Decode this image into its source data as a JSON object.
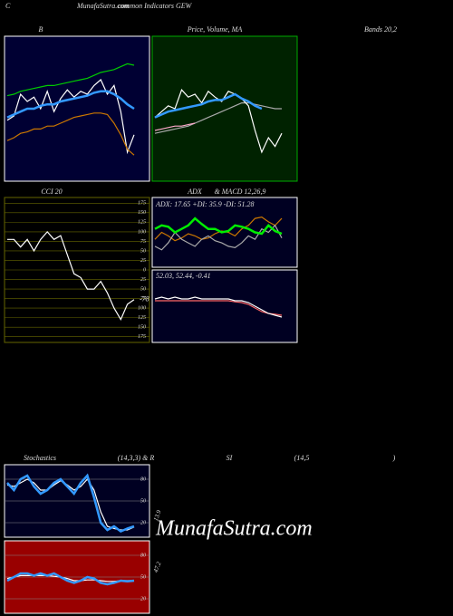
{
  "header": {
    "corner": "C",
    "site": "MunafaSutra.com",
    "subtitle": "common Indicators GEW"
  },
  "watermark": "MunafaSutra.com",
  "chart_data": [
    {
      "type": "line",
      "title": [
        "B",
        "Bands 20,2"
      ],
      "background": "#000033",
      "border": "#ffffff",
      "ylim": [
        0,
        100
      ],
      "series": [
        {
          "color": "#00cc00",
          "values": [
            59,
            60,
            62,
            63,
            64,
            65,
            66,
            66,
            67,
            68,
            69,
            70,
            71,
            73,
            75,
            76,
            77,
            79,
            81,
            80
          ]
        },
        {
          "color": "#ffffff",
          "values": [
            42,
            45,
            60,
            55,
            58,
            50,
            62,
            48,
            57,
            63,
            58,
            62,
            60,
            66,
            70,
            60,
            66,
            48,
            20,
            32
          ]
        },
        {
          "color": "#3399ff",
          "values": [
            44,
            46,
            48,
            50,
            50,
            52,
            53,
            53,
            55,
            56,
            57,
            58,
            59,
            61,
            62,
            62,
            60,
            57,
            53,
            50
          ]
        },
        {
          "color": "#cc7700",
          "values": [
            28,
            30,
            33,
            34,
            36,
            36,
            38,
            38,
            40,
            42,
            44,
            45,
            46,
            47,
            47,
            46,
            40,
            32,
            22,
            18
          ]
        }
      ]
    },
    {
      "type": "line",
      "title": [
        "Price, Volume, MA"
      ],
      "background": "#002200",
      "border": "#00aa00",
      "ylim": [
        0,
        100
      ],
      "series": [
        {
          "color": "#aaaaaa",
          "values": [
            33,
            34,
            35,
            36,
            37,
            38,
            40,
            42,
            44,
            46,
            48,
            50,
            52,
            54,
            54,
            53,
            52,
            51,
            50,
            50
          ]
        },
        {
          "color": "#ffaacc",
          "values": [
            35,
            36,
            37,
            38,
            38,
            39,
            40,
            null,
            null,
            null,
            null,
            null,
            null,
            null,
            null,
            null,
            null,
            null,
            null,
            null
          ]
        },
        {
          "color": "#ffffff",
          "values": [
            44,
            48,
            52,
            50,
            63,
            58,
            60,
            54,
            62,
            58,
            55,
            62,
            60,
            57,
            52,
            35,
            20,
            30,
            24,
            33
          ]
        },
        {
          "color": "#3399ff",
          "values": [
            44,
            46,
            48,
            49,
            50,
            51,
            52,
            53,
            55,
            56,
            56,
            58,
            60,
            57,
            55,
            52,
            50,
            null,
            null,
            null
          ]
        }
      ]
    },
    {
      "type": "line",
      "title": [
        "CCI 20"
      ],
      "background": "#000000",
      "border": "#666600",
      "grid": true,
      "annotation": "-78",
      "ylim": [
        -190,
        190
      ],
      "yticks": [
        175,
        150,
        125,
        100,
        75,
        50,
        25,
        0,
        {
          "value": -25,
          "label": "25"
        },
        {
          "value": -50,
          "label": "50"
        },
        {
          "value": -75,
          "label": "75"
        },
        {
          "value": -100,
          "label": "100"
        },
        {
          "value": -125,
          "label": "125"
        },
        {
          "value": -150,
          "label": "150"
        },
        {
          "value": -175,
          "label": "175"
        }
      ],
      "series": [
        {
          "color": "#ffffff",
          "values": [
            80,
            80,
            60,
            80,
            50,
            80,
            100,
            80,
            90,
            40,
            -10,
            -20,
            -50,
            -50,
            -30,
            -60,
            -100,
            -130,
            -90,
            -78
          ]
        }
      ]
    },
    {
      "type": "line",
      "title": [
        "ADX",
        "& MACD 12,26,9"
      ],
      "background": "#000022",
      "border": "#ffffff",
      "annotation": "ADX: 17.65 +DI: 35.9 -DI: 51.28",
      "ylim": [
        0,
        100
      ],
      "series": [
        {
          "color": "#cc7700",
          "values": [
            40,
            50,
            45,
            38,
            42,
            48,
            45,
            40,
            42,
            48,
            52,
            50,
            45,
            55,
            60,
            70,
            72,
            65,
            60,
            70
          ]
        },
        {
          "color": "#aaaaaa",
          "values": [
            30,
            25,
            35,
            50,
            40,
            35,
            30,
            40,
            45,
            38,
            35,
            30,
            28,
            35,
            45,
            40,
            55,
            50,
            60,
            42
          ]
        },
        {
          "color": "#00ee00",
          "values": [
            55,
            60,
            58,
            50,
            55,
            60,
            70,
            62,
            55,
            55,
            50,
            52,
            60,
            58,
            55,
            50,
            48,
            60,
            52,
            48
          ]
        }
      ]
    },
    {
      "type": "line",
      "background": "#000022",
      "border": "#ffffff",
      "annotation": "52.03, 52.44, -0.41",
      "ylim": [
        -1,
        1
      ],
      "series": [
        {
          "color": "#ff6666",
          "values": [
            0.15,
            0.15,
            0.15,
            0.15,
            0.15,
            0.15,
            0.15,
            0.15,
            0.15,
            0.15,
            0.15,
            0.15,
            0.12,
            0.1,
            0.05,
            -0.05,
            -0.15,
            -0.2,
            -0.22,
            -0.25
          ]
        },
        {
          "color": "#ffffff",
          "values": [
            0.2,
            0.25,
            0.2,
            0.25,
            0.2,
            0.2,
            0.25,
            0.2,
            0.2,
            0.2,
            0.2,
            0.2,
            0.15,
            0.15,
            0.1,
            0,
            -0.1,
            -0.2,
            -0.25,
            -0.3
          ]
        }
      ]
    },
    {
      "type": "line",
      "title": [
        "Stochastics",
        "(14,3,3) & R",
        "SI",
        "(14,5",
        ")"
      ],
      "background": "#000022",
      "border": "#ffffff",
      "grid": true,
      "annotation": "13.9",
      "ylim": [
        0,
        100
      ],
      "yticks": [
        20,
        50,
        80
      ],
      "series": [
        {
          "color": "#ffffff",
          "values": [
            72,
            70,
            75,
            80,
            75,
            65,
            65,
            72,
            78,
            72,
            65,
            70,
            80,
            65,
            35,
            15,
            12,
            10,
            10,
            14
          ]
        },
        {
          "color": "#3399ff",
          "values": [
            75,
            65,
            80,
            85,
            70,
            60,
            65,
            75,
            80,
            70,
            60,
            75,
            85,
            55,
            20,
            10,
            15,
            8,
            12,
            15
          ]
        }
      ]
    },
    {
      "type": "line",
      "background": "#990000",
      "border": "#ffffff",
      "grid": true,
      "annotation": "47.2",
      "ylim": [
        0,
        100
      ],
      "yticks": [
        20,
        50,
        80
      ],
      "series": [
        {
          "color": "#ffffff",
          "values": [
            48,
            50,
            52,
            52,
            52,
            52,
            52,
            51,
            50,
            48,
            45,
            45,
            46,
            46,
            45,
            44,
            44,
            45,
            45,
            45
          ]
        },
        {
          "color": "#3399ff",
          "values": [
            45,
            50,
            55,
            55,
            52,
            55,
            52,
            55,
            50,
            45,
            42,
            45,
            50,
            48,
            42,
            40,
            42,
            45,
            44,
            45
          ]
        }
      ]
    }
  ]
}
